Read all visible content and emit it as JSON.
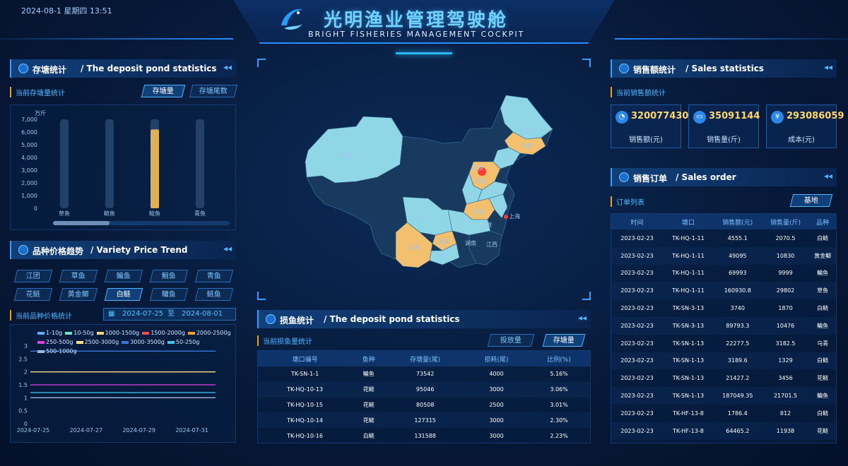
{
  "header": {
    "datetime": "2024-08-1 星期四 13:51",
    "title_cn": "光明渔业管理驾驶舱",
    "title_en": "BRIGHT FISHERIES MANAGEMENT COCKPIT"
  },
  "colors": {
    "accent": "#3aa0ff",
    "gold": "#f0c060",
    "map_light": "#8fd6e6",
    "map_orange": "#f2c06f",
    "map_red": "#ff3b30"
  },
  "deposit_panel": {
    "title_cn": "存塘统计",
    "title_en": "/ The deposit pond statistics",
    "subtitle": "当前存塘量统计",
    "tab_active": "存塘量",
    "tab_other": "存塘尾数",
    "unit": "万斤",
    "y_ticks": [
      "7,000",
      "6,000",
      "5,000",
      "4,000",
      "3,000",
      "2,000",
      "1,000",
      "0"
    ]
  },
  "price_panel": {
    "title_cn": "品种价格趋势",
    "title_en": "/ Variety Price Trend",
    "varieties": [
      "江团",
      "草鱼",
      "鳊鱼",
      "鮰鱼",
      "青鱼",
      "花鲢",
      "黄金鲫",
      "白鲢",
      "鳙鱼",
      "鲢鱼"
    ],
    "active_variety": "白鲢",
    "subtitle": "当前品种价格统计",
    "date_start": "2024-07-25",
    "date_sep": "至",
    "date_end": "2024-08-01",
    "legend": [
      "1-10g",
      "10-50g",
      "1000-1500g",
      "1500-2000g",
      "2000-2500g",
      "250-500g",
      "2500-3000g",
      "3000-3500g",
      "50-250g",
      "500-1000g"
    ],
    "legend_colors": [
      "#5ab0ff",
      "#6fe0c0",
      "#ffd66b",
      "#ff4b4b",
      "#f0a030",
      "#e040e0",
      "#ffe08a",
      "#3a78d8",
      "#40c8f0",
      "#a0b8d8"
    ]
  },
  "sales_panel": {
    "title_cn": "销售额统计",
    "title_en": "/ Sales statistics",
    "subtitle": "当前销售额统计",
    "cards": [
      {
        "value": "320077430",
        "label": "销售额(元)",
        "icon": "pie-icon"
      },
      {
        "value": "35091144",
        "label": "销售量(斤)",
        "icon": "box-icon"
      },
      {
        "value": "293086059",
        "label": "成本(元)",
        "icon": "money-icon"
      }
    ]
  },
  "order_panel": {
    "title_cn": "销售订单",
    "title_en": "/ Sales order",
    "subtitle": "订单列表",
    "filter": "基地",
    "headers": [
      "时间",
      "塘口",
      "销售额(元)",
      "销售量(斤)",
      "品种"
    ],
    "rows": [
      [
        "2023-02-23",
        "TK-HQ-1-11",
        "4555.1",
        "2070.5",
        "白鲢"
      ],
      [
        "2023-02-23",
        "TK-HQ-1-11",
        "49095",
        "10830",
        "黄金鲫"
      ],
      [
        "2023-02-23",
        "TK-HQ-1-11",
        "69993",
        "9999",
        "鳊鱼"
      ],
      [
        "2023-02-23",
        "TK-HQ-1-11",
        "160930.8",
        "29802",
        "草鱼"
      ],
      [
        "2023-02-23",
        "TK-SN-3-13",
        "3740",
        "1870",
        "白鲢"
      ],
      [
        "2023-02-23",
        "TK-SN-3-13",
        "89793.3",
        "10476",
        "鳊鱼"
      ],
      [
        "2023-02-23",
        "TK-SN-1-13",
        "22277.5",
        "3182.5",
        "乌青"
      ],
      [
        "2023-02-23",
        "TK-SN-1-13",
        "3189.6",
        "1329",
        "白鲢"
      ],
      [
        "2023-02-23",
        "TK-SN-1-13",
        "21427.2",
        "3456",
        "花鲢"
      ],
      [
        "2023-02-23",
        "TK-SN-1-13",
        "187049.35",
        "21701.5",
        "鳊鱼"
      ],
      [
        "2023-02-23",
        "TK-HF-13-8",
        "1786.4",
        "812",
        "白鲢"
      ],
      [
        "2023-02-23",
        "TK-HF-13-8",
        "64465.2",
        "11938",
        "花鲢"
      ]
    ]
  },
  "loss_panel": {
    "title_cn": "损鱼统计",
    "title_en": "/ The deposit pond statistics",
    "subtitle": "当前损鱼量统计",
    "tab_other": "投放量",
    "tab_active": "存塘量",
    "headers": [
      "塘口编号",
      "鱼种",
      "存塘量(尾)",
      "损耗(尾)",
      "比例(%)"
    ],
    "rows": [
      [
        "TK-SN-1-1",
        "鳊鱼",
        "73542",
        "4000",
        "5.16%"
      ],
      [
        "TK-HQ-10-13",
        "花鲢",
        "95046",
        "3000",
        "3.06%"
      ],
      [
        "TK-HQ-10-15",
        "花鲢",
        "80508",
        "2500",
        "3.01%"
      ],
      [
        "TK-HQ-10-14",
        "花鲢",
        "127315",
        "3000",
        "2.30%"
      ],
      [
        "TK-HQ-10-16",
        "白鲢",
        "131588",
        "3000",
        "2.23%"
      ]
    ]
  },
  "map_labels": [
    "新疆",
    "黑龙江",
    "吉林",
    "辽宁",
    "北京",
    "河北",
    "山西",
    "山东",
    "河南",
    "江苏",
    "上海",
    "安徽",
    "湖北",
    "四川",
    "重庆",
    "贵州",
    "云南",
    "湖南",
    "江西"
  ],
  "chart_data": [
    {
      "type": "bar",
      "title": "",
      "categories": [
        "草鱼",
        "鲢鱼",
        "鲑鱼",
        "青鱼"
      ],
      "values": [
        0,
        0,
        6200,
        0
      ],
      "ylabel": "万斤",
      "ylim": [
        0,
        7000
      ],
      "grid": true
    },
    {
      "type": "line",
      "title": "",
      "x": [
        "2024-07-25",
        "2024-07-26",
        "2024-07-27",
        "2024-07-28",
        "2024-07-29",
        "2024-07-30",
        "2024-07-31",
        "2024-08-01"
      ],
      "xticks": [
        "2024-07-25",
        "2024-07-27",
        "2024-07-29",
        "2024-07-31"
      ],
      "ylim": [
        0,
        3
      ],
      "yticks": [
        "3",
        "2.5",
        "2",
        "1.5",
        "1",
        "0.5",
        "0"
      ],
      "legend": "top",
      "series": [
        {
          "name": "3000-3500g",
          "color": "#3a78d8",
          "values": [
            2.8,
            2.8,
            2.8,
            2.8,
            2.8,
            2.8,
            2.8,
            2.8
          ]
        },
        {
          "name": "2500-3000g",
          "color": "#ffe08a",
          "values": [
            2,
            2,
            2,
            2,
            2,
            2,
            2,
            2
          ]
        },
        {
          "name": "250-500g",
          "color": "#e040e0",
          "values": [
            1.5,
            1.5,
            1.5,
            1.5,
            1.5,
            1.5,
            1.5,
            1.5
          ]
        },
        {
          "name": "50-250g",
          "color": "#40c8f0",
          "values": [
            1.2,
            1.2,
            1.2,
            1.2,
            1.2,
            1.2,
            1.2,
            1.2
          ]
        },
        {
          "name": "500-1000g",
          "color": "#a0b8d8",
          "values": [
            1,
            1,
            1,
            1,
            1,
            1,
            1,
            1
          ]
        }
      ]
    }
  ]
}
